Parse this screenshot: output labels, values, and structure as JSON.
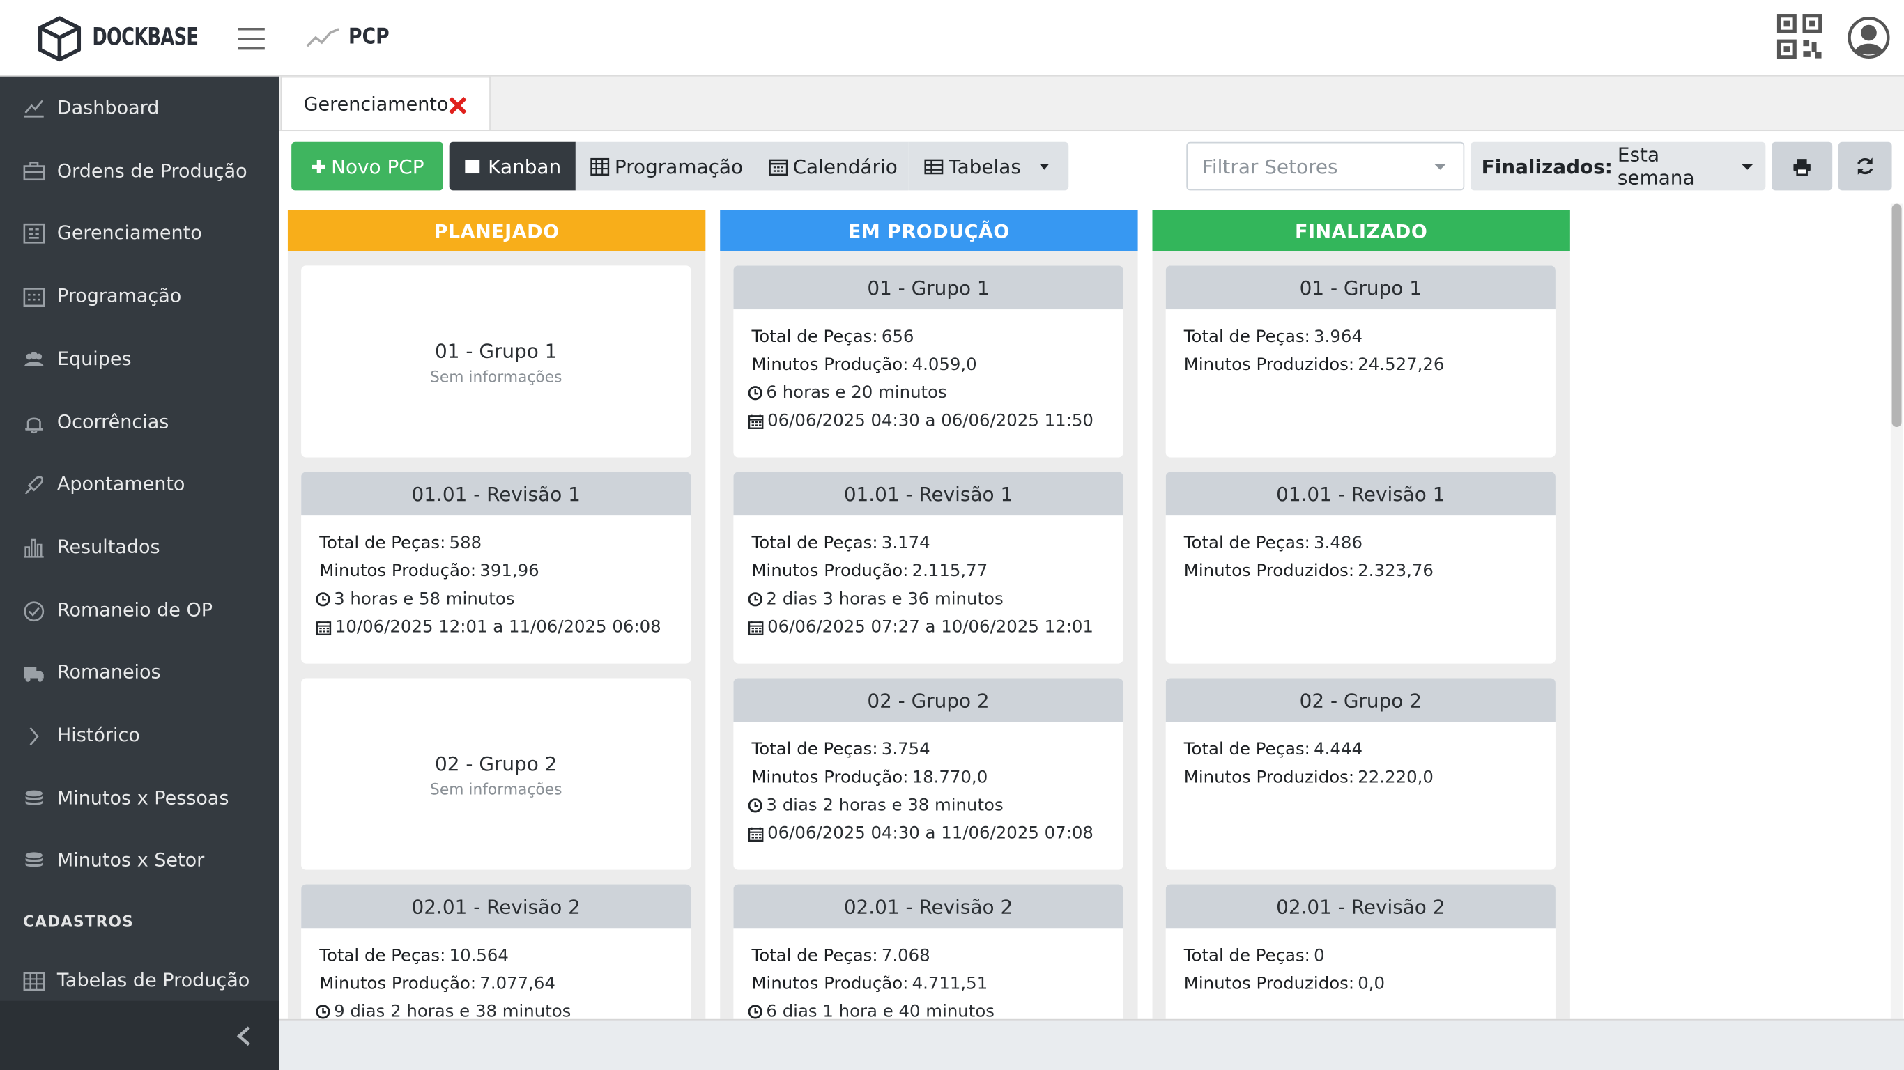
{
  "header": {
    "brand": "DOCKBASE",
    "page_title": "PCP"
  },
  "sidebar": {
    "items": [
      "Dashboard",
      "Ordens de Produção",
      "Gerenciamento",
      "Programação",
      "Equipes",
      "Ocorrências",
      "Apontamento",
      "Resultados",
      "Romaneio de OP",
      "Romaneios",
      "Histórico",
      "Minutos x Pessoas",
      "Minutos x Setor"
    ],
    "section": "CADASTROS",
    "section_items": [
      "Tabelas de Produção"
    ]
  },
  "tab": {
    "label": "Gerenciamento"
  },
  "toolbar": {
    "new_button": "Novo PCP",
    "views": [
      "Kanban",
      "Programação",
      "Calendário",
      "Tabelas"
    ],
    "filter_placeholder": "Filtrar Setores",
    "finalized_label": "Finalizados:",
    "finalized_value": "Esta semana"
  },
  "columns": [
    {
      "title": "PLANEJADO",
      "color": "#f8ae1a",
      "cards": [
        {
          "title": "01 - Grupo 1",
          "note": "Sem informações"
        },
        {
          "title": "01.01 - Revisão 1",
          "fields": [
            {
              "label": "Total de Peças:",
              "value": "588"
            },
            {
              "label": "Minutos Produção:",
              "value": "391,96"
            }
          ],
          "duration": "3 horas e 58 minutos",
          "period": "10/06/2025 12:01 a 11/06/2025 06:08"
        },
        {
          "title": "02 - Grupo 2",
          "note": "Sem informações"
        },
        {
          "title": "02.01 - Revisão 2",
          "fields": [
            {
              "label": "Total de Peças:",
              "value": "10.564"
            },
            {
              "label": "Minutos Produção:",
              "value": "7.077,64"
            }
          ],
          "duration": "9 dias 2 horas e 38 minutos"
        }
      ]
    },
    {
      "title": "EM PRODUÇÃO",
      "color": "#3798f2",
      "cards": [
        {
          "title": "01 - Grupo 1",
          "fields": [
            {
              "label": "Total de Peças:",
              "value": "656"
            },
            {
              "label": "Minutos Produção:",
              "value": "4.059,0"
            }
          ],
          "duration": "6 horas e 20 minutos",
          "period": "06/06/2025 04:30 a 06/06/2025 11:50"
        },
        {
          "title": "01.01 - Revisão 1",
          "fields": [
            {
              "label": "Total de Peças:",
              "value": "3.174"
            },
            {
              "label": "Minutos Produção:",
              "value": "2.115,77"
            }
          ],
          "duration": "2 dias 3 horas e 36 minutos",
          "period": "06/06/2025 07:27 a 10/06/2025 12:01"
        },
        {
          "title": "02 - Grupo 2",
          "fields": [
            {
              "label": "Total de Peças:",
              "value": "3.754"
            },
            {
              "label": "Minutos Produção:",
              "value": "18.770,0"
            }
          ],
          "duration": "3 dias 2 horas e 38 minutos",
          "period": "06/06/2025 04:30 a 11/06/2025 07:08"
        },
        {
          "title": "02.01 - Revisão 2",
          "fields": [
            {
              "label": "Total de Peças:",
              "value": "7.068"
            },
            {
              "label": "Minutos Produção:",
              "value": "4.711,51"
            }
          ],
          "duration": "6 dias 1 hora e 40 minutos"
        }
      ]
    },
    {
      "title": "FINALIZADO",
      "color": "#33b65b",
      "cards": [
        {
          "title": "01 - Grupo 1",
          "fields": [
            {
              "label": "Total de Peças:",
              "value": "3.964"
            },
            {
              "label": "Minutos Produzidos:",
              "value": "24.527,26"
            }
          ]
        },
        {
          "title": "01.01 - Revisão 1",
          "fields": [
            {
              "label": "Total de Peças:",
              "value": "3.486"
            },
            {
              "label": "Minutos Produzidos:",
              "value": "2.323,76"
            }
          ]
        },
        {
          "title": "02 - Grupo 2",
          "fields": [
            {
              "label": "Total de Peças:",
              "value": "4.444"
            },
            {
              "label": "Minutos Produzidos:",
              "value": "22.220,0"
            }
          ]
        },
        {
          "title": "02.01 - Revisão 2",
          "fields": [
            {
              "label": "Total de Peças:",
              "value": "0"
            },
            {
              "label": "Minutos Produzidos:",
              "value": "0,0"
            }
          ]
        }
      ]
    }
  ]
}
